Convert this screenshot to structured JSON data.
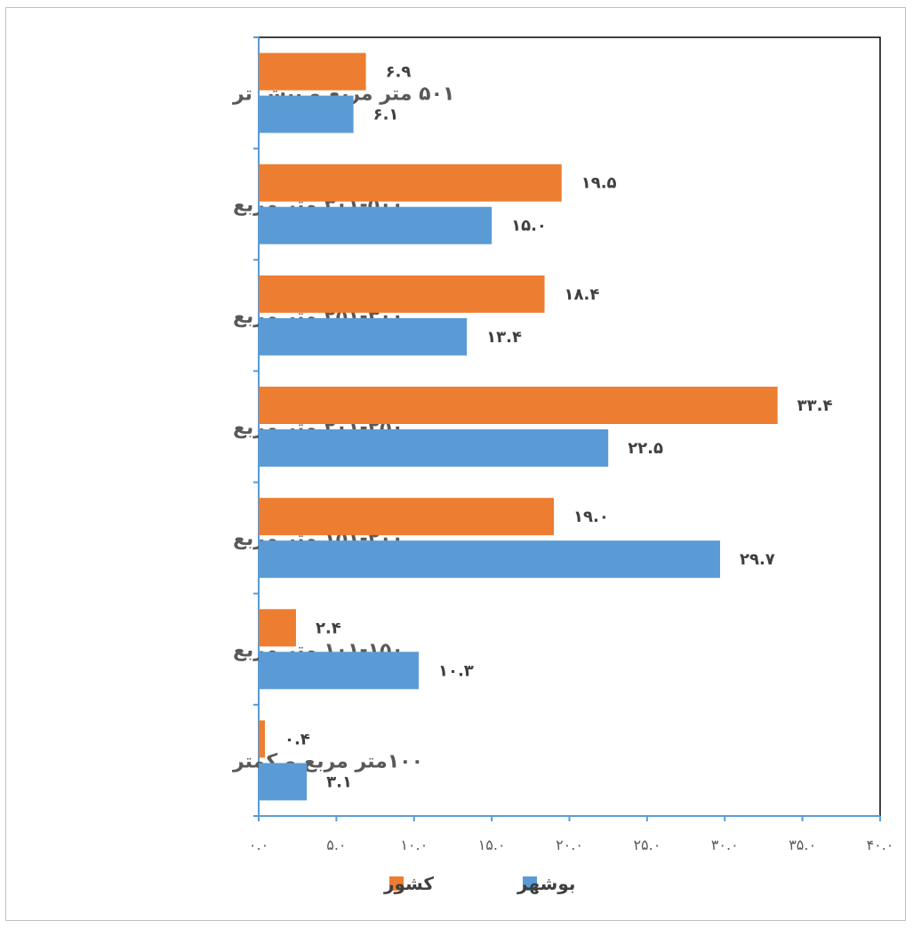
{
  "chart_data": {
    "type": "bar",
    "orientation": "horizontal",
    "categories": [
      "۱۰۰متر مربع و کمتر",
      "۱۰۱-۱۵۰ متر مربع",
      "۱۵۱-۲۰۰ متر مربع",
      "۲۰۱-۲۵۰ متر مربع",
      "۲۵۱-۳۰۰ متر مربع",
      "۳۰۱-۵۰۰ متر مربع",
      "۵۰۱ متر مربع و بیش تر"
    ],
    "series": [
      {
        "name": "کشور",
        "color": "#ED7D31",
        "values": [
          0.4,
          2.4,
          19.0,
          33.4,
          18.4,
          19.5,
          6.9
        ],
        "labels": [
          "۰.۴",
          "۲.۴",
          "۱۹.۰",
          "۳۳.۴",
          "۱۸.۴",
          "۱۹.۵",
          "۶.۹"
        ]
      },
      {
        "name": "بوشهر",
        "color": "#5B9BD5",
        "values": [
          3.1,
          10.3,
          29.7,
          22.5,
          13.4,
          15.0,
          6.1
        ],
        "labels": [
          "۳.۱",
          "۱۰.۳",
          "۲۹.۷",
          "۲۲.۵",
          "۱۳.۴",
          "۱۵.۰",
          "۶.۱"
        ]
      }
    ],
    "xlim": [
      0,
      40
    ],
    "x_ticks": [
      "۰.۰",
      "۵.۰",
      "۱۰.۰",
      "۱۵.۰",
      "۲۰.۰",
      "۲۵.۰",
      "۳۰.۰",
      "۳۵.۰",
      "۴۰.۰"
    ],
    "grid": false,
    "legend_position": "bottom",
    "legend_order": [
      "کشور",
      "بوشهر"
    ]
  }
}
